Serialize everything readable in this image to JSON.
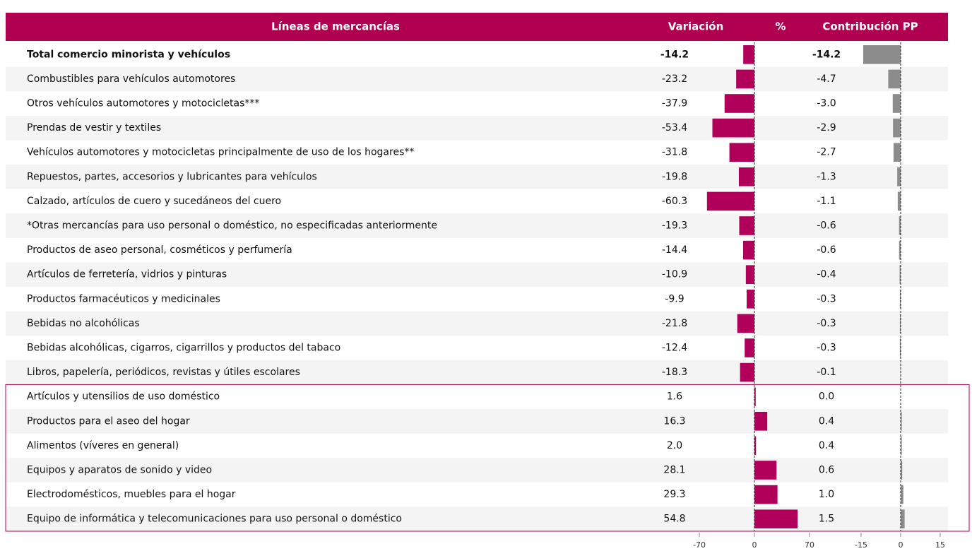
{
  "chart_data": {
    "type": "bar",
    "orientation": "horizontal",
    "header": "Líneas de mercancías",
    "unit_header": "%",
    "categories": [
      "Total comercio minorista y vehículos",
      "Combustibles para vehículos automotores",
      "Otros vehículos automotores y motocicletas***",
      "Prendas de vestir y textiles",
      "Vehículos automotores y motocicletas principalmente de uso de los hogares**",
      "Repuestos, partes, accesorios y lubricantes para vehículos",
      "Calzado, artículos de cuero y sucedáneos del cuero",
      "*Otras mercancías para uso personal o doméstico, no especificadas anteriormente",
      "Productos de aseo personal, cosméticos y perfumería",
      "Artículos de ferretería, vidrios y pinturas",
      "Productos farmacéuticos y medicinales",
      "Bebidas no alcohólicas",
      "Bebidas alcohólicas, cigarros, cigarrillos y productos del tabaco",
      "Libros, papelería, periódicos, revistas y útiles escolares",
      "Artículos y utensilios de uso doméstico",
      "Productos para el aseo del hogar",
      "Alimentos (víveres en general)",
      "Equipos y aparatos de sonido y video",
      "Electrodomésticos, muebles para el hogar",
      "Equipo de informática y telecomunicaciones para uso personal o doméstico"
    ],
    "series": [
      {
        "name": "Variación",
        "color": "#b0005a",
        "values": [
          -14.2,
          -23.2,
          -37.9,
          -53.4,
          -31.8,
          -19.8,
          -60.3,
          -19.3,
          -14.4,
          -10.9,
          -9.9,
          -21.8,
          -12.4,
          -18.3,
          1.6,
          16.3,
          2.0,
          28.1,
          29.3,
          54.8
        ],
        "value_labels": [
          "-14.2",
          "-23.2",
          "-37.9",
          "-53.4",
          "-31.8",
          "-19.8",
          "-60.3",
          "-19.3",
          "-14.4",
          "-10.9",
          "-9.9",
          "-21.8",
          "-12.4",
          "-18.3",
          "1.6",
          "16.3",
          "2.0",
          "28.1",
          "29.3",
          "54.8"
        ],
        "xlim": [
          -70,
          70
        ],
        "xticks": [
          -70,
          0,
          70
        ]
      },
      {
        "name": "Contribución PP",
        "color": "#8c8c8c",
        "values": [
          -14.2,
          -4.7,
          -3.0,
          -2.9,
          -2.7,
          -1.3,
          -1.1,
          -0.6,
          -0.6,
          -0.4,
          -0.3,
          -0.3,
          -0.3,
          -0.1,
          0.0,
          0.4,
          0.4,
          0.6,
          1.0,
          1.5
        ],
        "value_labels": [
          "-14.2",
          "-4.7",
          "-3.0",
          "-2.9",
          "-2.7",
          "-1.3",
          "-1.1",
          "-0.6",
          "-0.6",
          "-0.4",
          "-0.3",
          "-0.3",
          "-0.3",
          "-0.1",
          "0.0",
          "0.4",
          "0.4",
          "0.6",
          "1.0",
          "1.5"
        ],
        "xlim": [
          -15,
          15
        ],
        "xticks": [
          -15,
          0,
          15
        ]
      }
    ]
  }
}
